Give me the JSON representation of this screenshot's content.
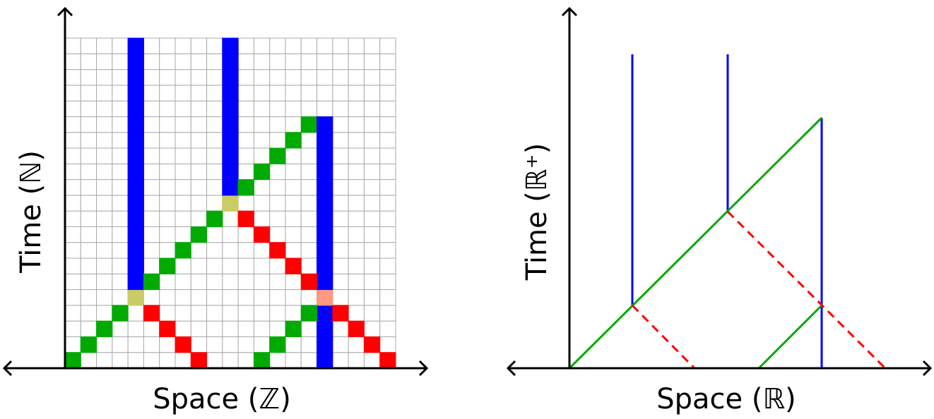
{
  "left_panel": {
    "x_label": "Space (ℤ)",
    "y_label": "Time (ℕ)"
  },
  "right_panel": {
    "x_label": "Space (ℝ)",
    "y_label": "Time  (ℝ⁺)"
  }
}
